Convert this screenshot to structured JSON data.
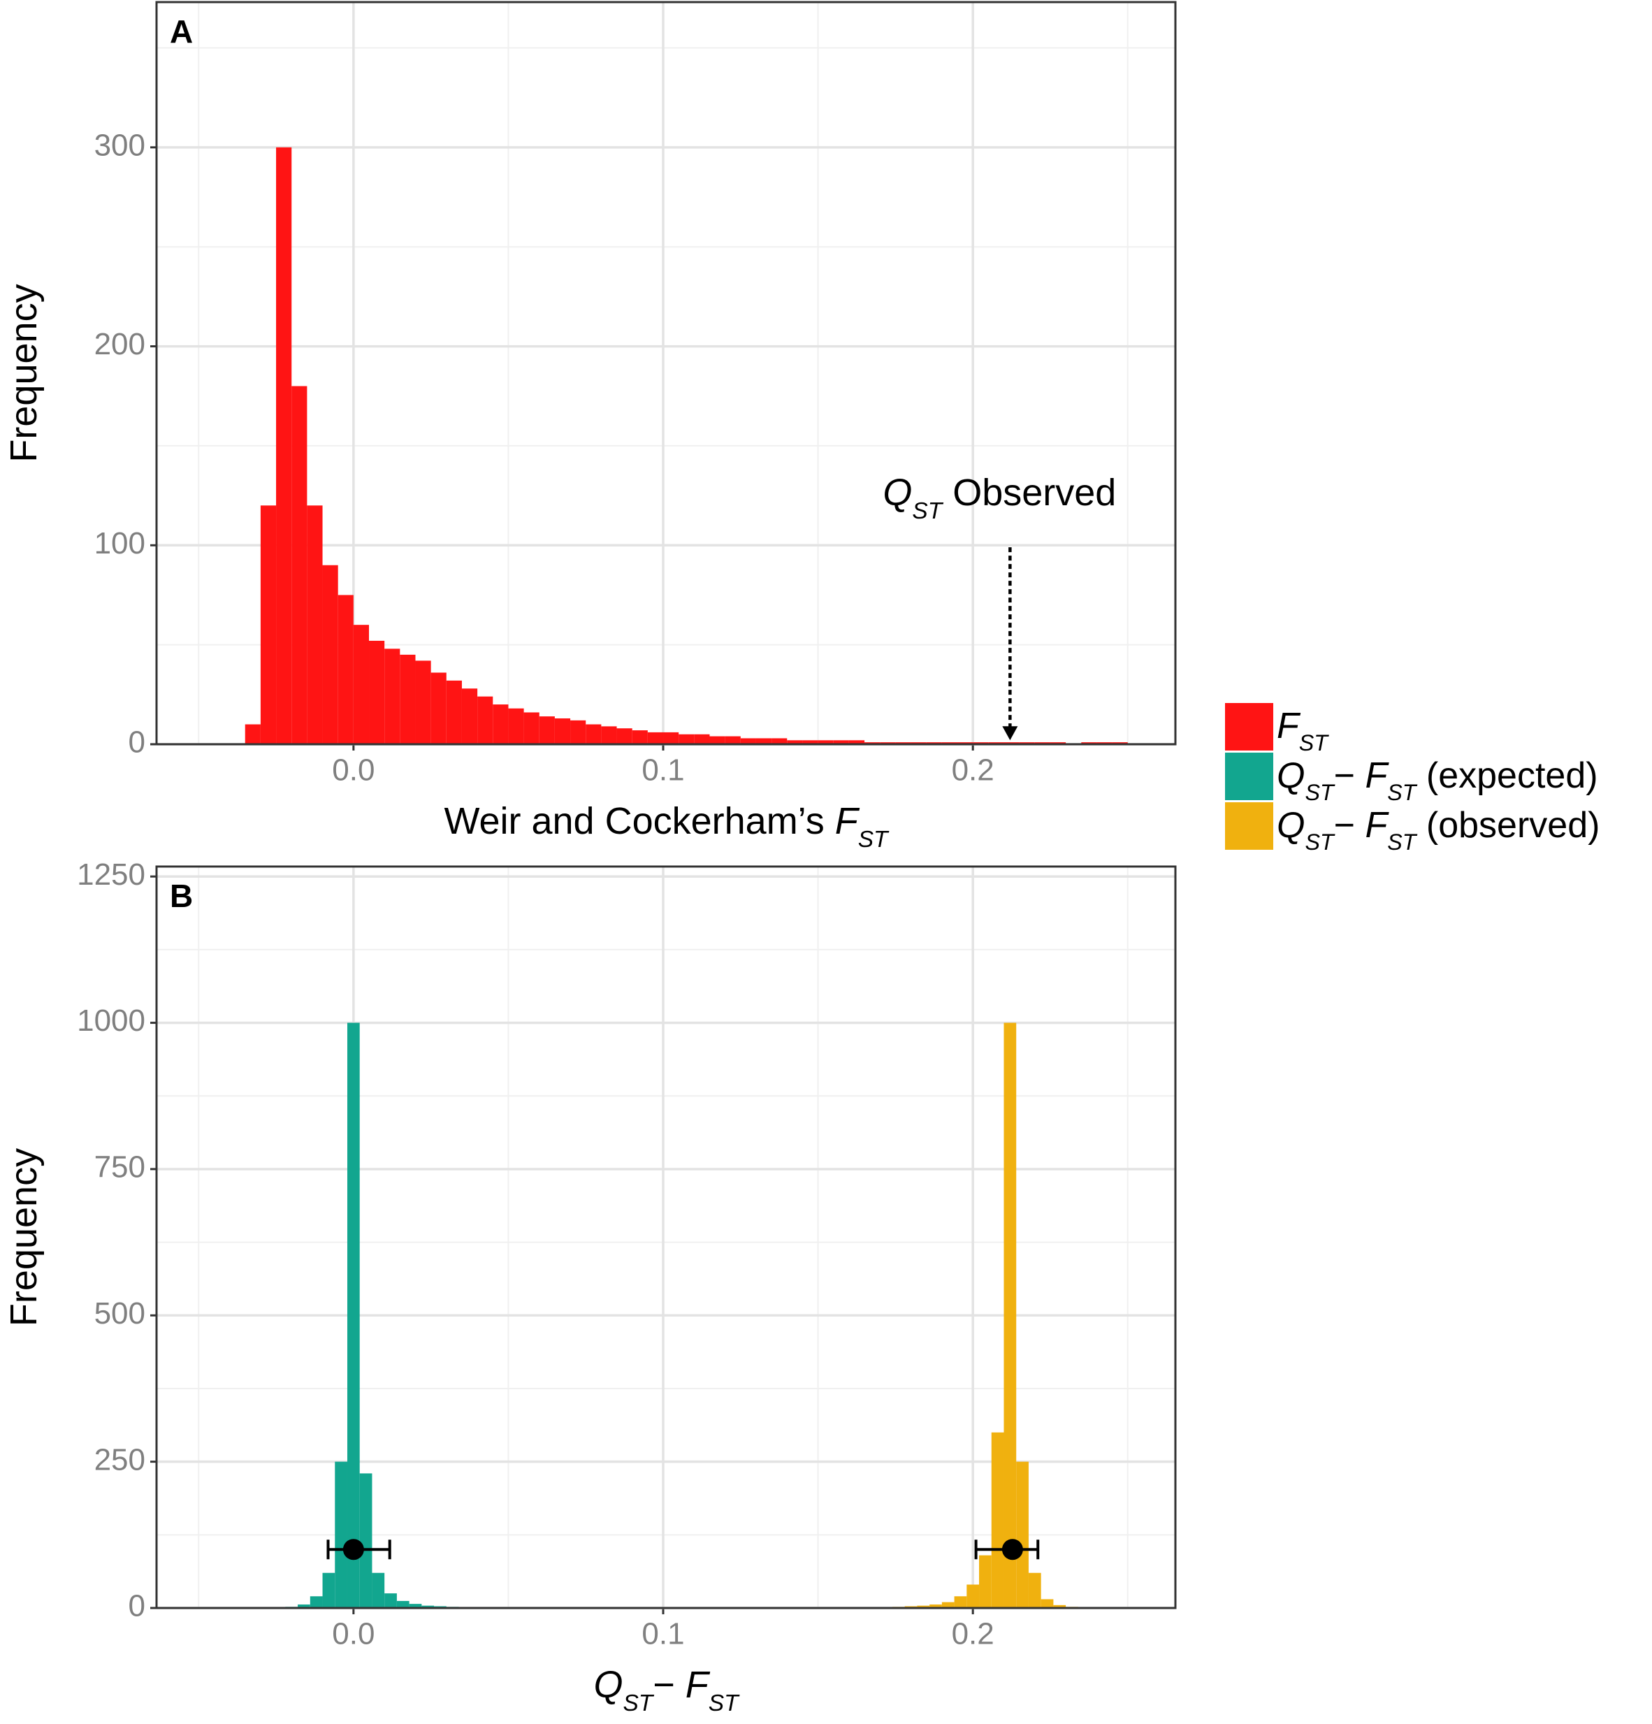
{
  "chart_data": [
    {
      "type": "histogram",
      "panel": "A",
      "legend": "right",
      "grid": true,
      "xlabel": [
        {
          "text": "Weir and Cockerham’s "
        },
        {
          "text": "F",
          "italic": true
        },
        {
          "text": "ST",
          "sub": true
        }
      ],
      "ylabel": "Frequency",
      "xlim": [
        -0.0636,
        0.2654
      ],
      "ylim": [
        0,
        373
      ],
      "xticks": [
        {
          "value": 0,
          "label": "0.0"
        },
        0.1,
        0.2
      ],
      "yticks": [
        0,
        100,
        200,
        300
      ],
      "xminor": [
        -0.05,
        0.05,
        0.15,
        0.25
      ],
      "yminor": [
        50,
        150,
        250,
        350
      ],
      "series": [
        {
          "name": [
            {
              "text": "F",
              "italic": true
            },
            {
              "text": "ST",
              "sub": true
            }
          ],
          "color": "#ff1414",
          "bins": [
            -0.035,
            -0.03,
            -0.025,
            -0.02,
            -0.015,
            -0.01,
            -0.005,
            0,
            0.005,
            0.01,
            0.015,
            0.02,
            0.025,
            0.03,
            0.035,
            0.04,
            0.045,
            0.05,
            0.055,
            0.06,
            0.065,
            0.07,
            0.075,
            0.08,
            0.085,
            0.09,
            0.095,
            0.1,
            0.105,
            0.11,
            0.115,
            0.12,
            0.125,
            0.13,
            0.135,
            0.14,
            0.145,
            0.15,
            0.155,
            0.16,
            0.165,
            0.17,
            0.175,
            0.18,
            0.185,
            0.19,
            0.195,
            0.2,
            0.205,
            0.21,
            0.215,
            0.22,
            0.225,
            0.23,
            0.235,
            0.24,
            0.245,
            0.25
          ],
          "values": [
            10,
            120,
            300,
            180,
            120,
            90,
            75,
            60,
            52,
            48,
            45,
            42,
            36,
            32,
            28,
            24,
            20,
            18,
            16,
            14,
            13,
            12,
            10,
            9,
            8,
            7,
            6,
            6,
            5,
            5,
            4,
            4,
            3,
            3,
            3,
            2,
            2,
            2,
            2,
            2,
            1,
            1,
            1,
            1,
            1,
            1,
            1,
            1,
            1,
            1,
            1,
            1,
            1,
            0,
            1,
            1,
            1
          ]
        }
      ],
      "annotation": {
        "parts": [
          {
            "text": "Q",
            "italic": true
          },
          {
            "text": "ST",
            "sub": true
          },
          {
            "text": " Observed"
          }
        ],
        "x": 0.212,
        "y_from": 99,
        "y_to": 2
      }
    },
    {
      "type": "histogram",
      "panel": "B",
      "grid": true,
      "xlabel": [
        {
          "text": "Q",
          "italic": true
        },
        {
          "text": "ST",
          "sub": true
        },
        {
          "text": "− "
        },
        {
          "text": "F",
          "italic": true
        },
        {
          "text": "ST",
          "sub": true
        }
      ],
      "ylabel": "Frequency",
      "xlim": [
        -0.0636,
        0.2654
      ],
      "ylim": [
        0,
        1267
      ],
      "xticks": [
        {
          "value": 0,
          "label": "0.0"
        },
        0.1,
        0.2
      ],
      "yticks": [
        0,
        250,
        500,
        750,
        1000,
        1250
      ],
      "xminor": [
        -0.05,
        0.05,
        0.15,
        0.25
      ],
      "yminor": [
        125,
        375,
        625,
        875,
        1125
      ],
      "series": [
        {
          "name": [
            {
              "text": "Q",
              "italic": true
            },
            {
              "text": "ST",
              "sub": true
            },
            {
              "text": "− "
            },
            {
              "text": "F",
              "italic": true
            },
            {
              "text": "ST",
              "sub": true
            },
            {
              "text": " (expected)"
            }
          ],
          "color": "#12a68f",
          "bins": [
            -0.022,
            -0.018,
            -0.014,
            -0.01,
            -0.006,
            -0.002,
            0.002,
            0.006,
            0.01,
            0.014,
            0.018,
            0.022,
            0.026,
            0.03,
            0.034,
            0.038,
            0.042
          ],
          "values": [
            2,
            6,
            20,
            60,
            250,
            1000,
            230,
            60,
            25,
            12,
            7,
            4,
            3,
            2,
            1,
            1
          ],
          "errorbar": {
            "x": 0,
            "y": 100,
            "xmin": -0.0082,
            "xmax": 0.0117
          }
        },
        {
          "name": [
            {
              "text": "Q",
              "italic": true
            },
            {
              "text": "ST",
              "sub": true
            },
            {
              "text": "− "
            },
            {
              "text": "F",
              "italic": true
            },
            {
              "text": "ST",
              "sub": true
            },
            {
              "text": " (observed)"
            }
          ],
          "color": "#f0b10f",
          "bins": [
            0.17,
            0.174,
            0.178,
            0.182,
            0.186,
            0.19,
            0.194,
            0.198,
            0.202,
            0.206,
            0.21,
            0.214,
            0.218,
            0.222,
            0.226,
            0.23,
            0.234,
            0.238
          ],
          "values": [
            1,
            2,
            3,
            4,
            6,
            10,
            20,
            40,
            90,
            300,
            1000,
            250,
            60,
            15,
            5,
            2,
            1
          ],
          "errorbar": {
            "x": 0.2128,
            "y": 100,
            "xmin": 0.201,
            "xmax": 0.221
          }
        }
      ]
    }
  ]
}
